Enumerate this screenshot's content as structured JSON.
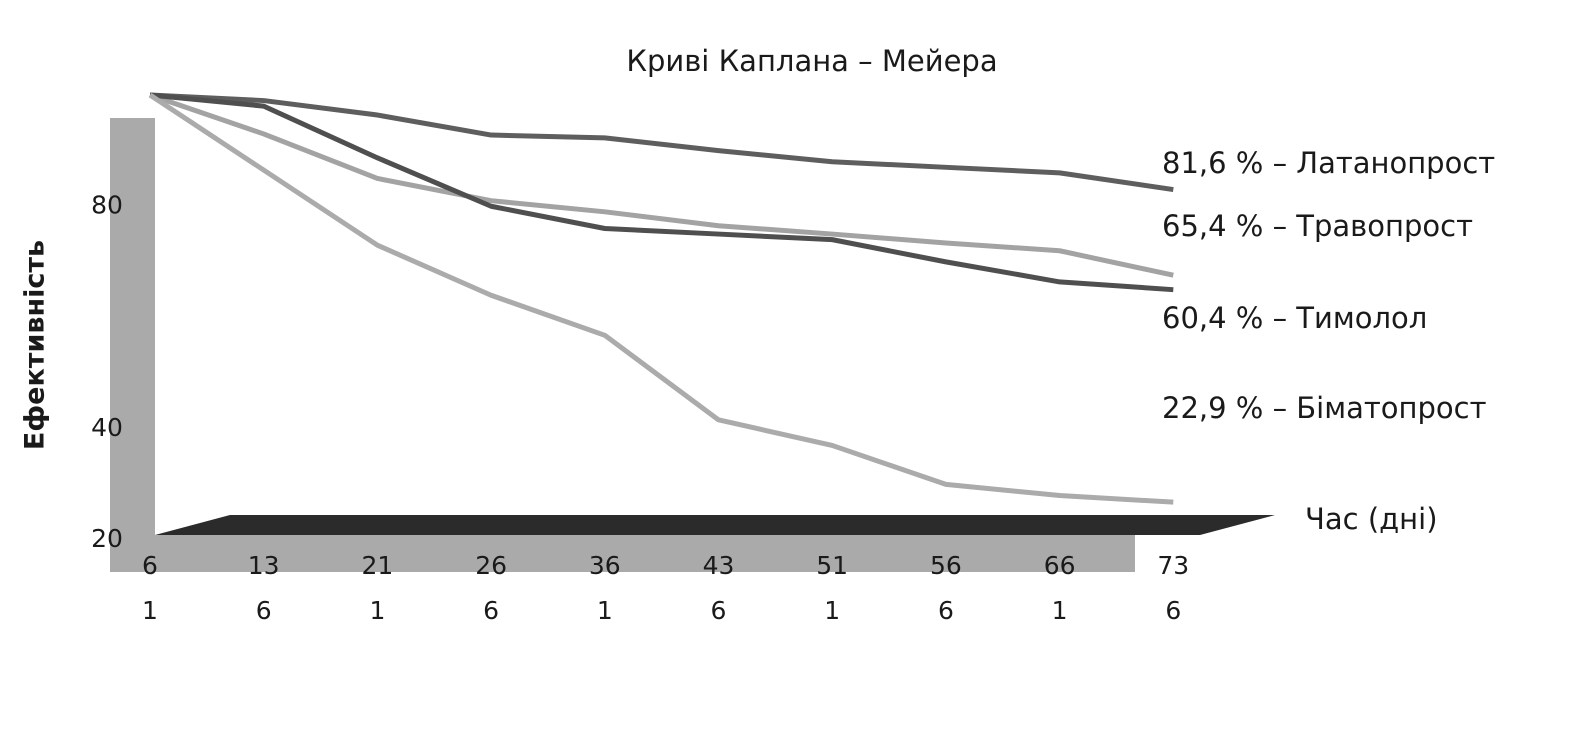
{
  "chart_data": {
    "type": "line",
    "title": "Криві Каплана – Мейера",
    "y_label": "Ефективність",
    "x_label": "Час (дні)",
    "categories": [
      "6",
      "13",
      "21",
      "26",
      "36",
      "43",
      "51",
      "56",
      "66",
      "73"
    ],
    "categories2": [
      "1",
      "6",
      "1",
      "6",
      "1",
      "6",
      "1",
      "6",
      "1",
      "6"
    ],
    "ylim": [
      20,
      100
    ],
    "yticks": [
      20,
      40,
      80
    ],
    "series": [
      {
        "name": "81,6 % – Латанопрост",
        "color": "#5e5e5e",
        "values": [
          100,
          99,
          96.4,
          92.8,
          92.3,
          90,
          88,
          87,
          86,
          83
        ]
      },
      {
        "name": "65,4 % – Травопрост",
        "color": "#a3a3a3",
        "values": [
          100,
          93,
          85,
          81,
          79,
          76.5,
          75,
          73.4,
          72,
          67.6
        ]
      },
      {
        "name": "60,4 % – Тимолол",
        "color": "#4f4f4f",
        "values": [
          100,
          98,
          88.7,
          80,
          76,
          75,
          74,
          70,
          66.4,
          65
        ]
      },
      {
        "name": "22,9 % – Біматопрост",
        "color": "#ababab",
        "values": [
          100,
          86.5,
          73,
          64,
          56.8,
          41.6,
          37,
          30,
          28,
          26.8
        ]
      }
    ]
  }
}
